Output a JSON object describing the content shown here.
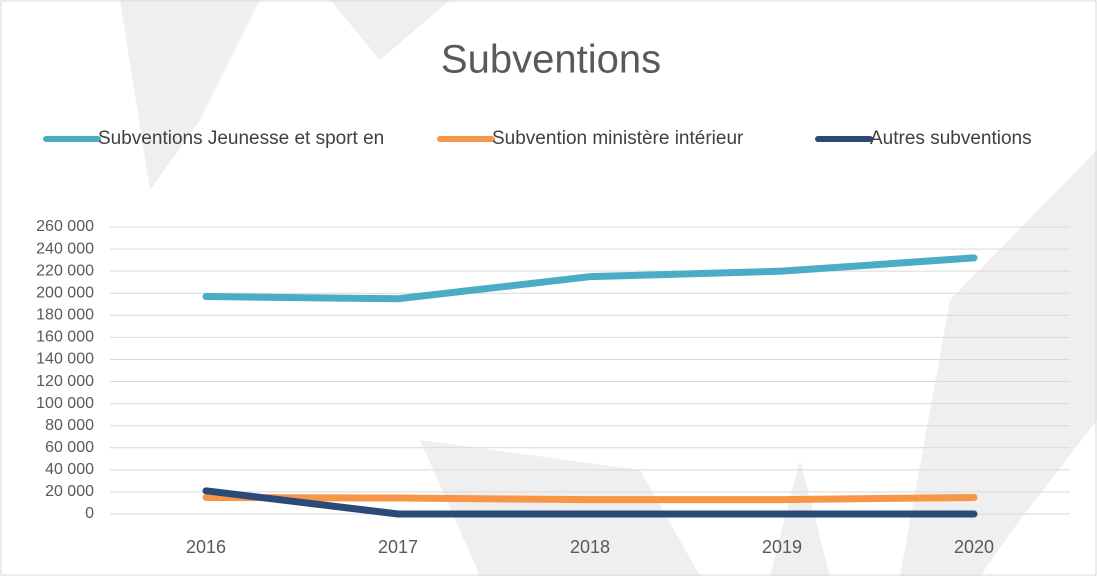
{
  "chart_data": {
    "type": "line",
    "title": "Subventions",
    "categories": [
      "2016",
      "2017",
      "2018",
      "2019",
      "2020"
    ],
    "series": [
      {
        "name": "Subventions Jeunesse et sport en",
        "color": "#4bacc6",
        "values": [
          197000,
          195000,
          215000,
          220000,
          232000
        ]
      },
      {
        "name": "Subvention ministère intérieur",
        "color": "#f79646",
        "values": [
          15000,
          14500,
          13000,
          13000,
          15000
        ]
      },
      {
        "name": "Autres subventions",
        "color": "#2c4a78",
        "values": [
          21000,
          0,
          0,
          0,
          0
        ]
      }
    ],
    "ylim": [
      0,
      260000
    ],
    "yticks": [
      {
        "value": 0,
        "label": "0"
      },
      {
        "value": 20000,
        "label": "20 000"
      },
      {
        "value": 40000,
        "label": "40 000"
      },
      {
        "value": 60000,
        "label": "60 000"
      },
      {
        "value": 80000,
        "label": "80 000"
      },
      {
        "value": 100000,
        "label": "100 000"
      },
      {
        "value": 120000,
        "label": "120 000"
      },
      {
        "value": 140000,
        "label": "140 000"
      },
      {
        "value": 160000,
        "label": "160 000"
      },
      {
        "value": 180000,
        "label": "180 000"
      },
      {
        "value": 200000,
        "label": "200 000"
      },
      {
        "value": 220000,
        "label": "220 000"
      },
      {
        "value": 240000,
        "label": "240 000"
      },
      {
        "value": 260000,
        "label": "260 000"
      }
    ],
    "grid": true,
    "legend": "top"
  }
}
